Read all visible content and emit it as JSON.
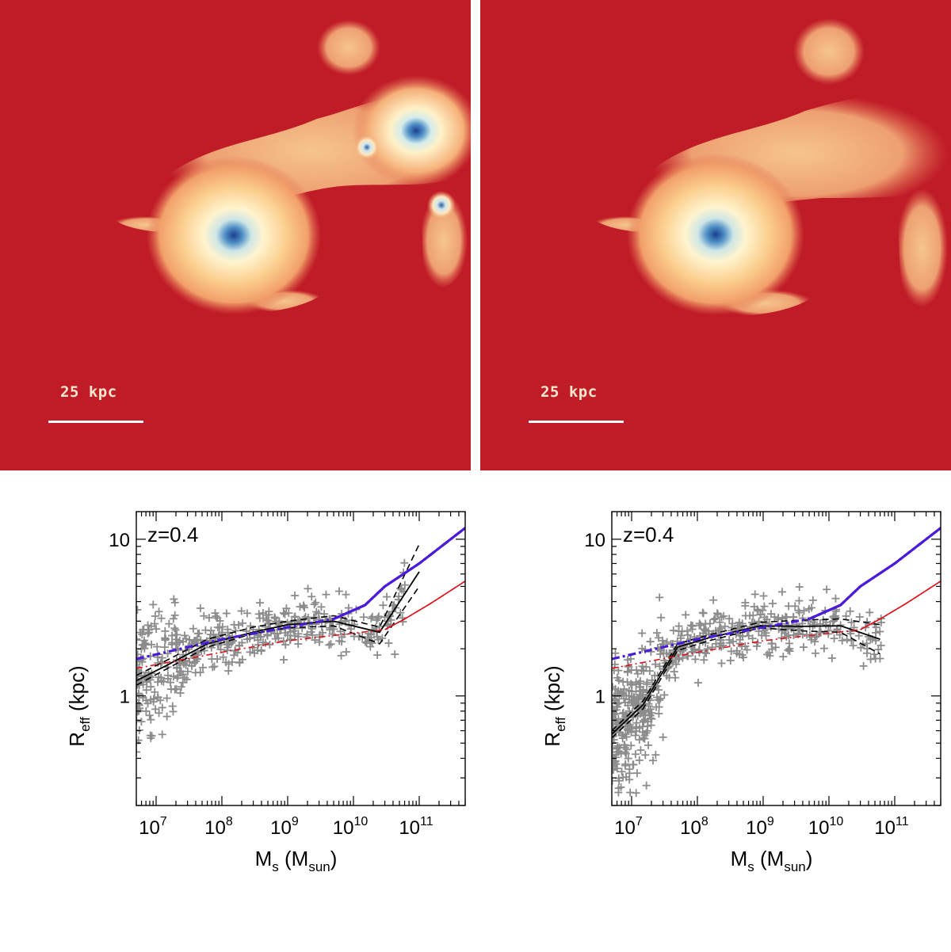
{
  "images": [
    {
      "id": "left",
      "scale_label": "25 kpc",
      "description_colors": {
        "background": "#c01c28",
        "core": "#1a3f8f"
      }
    },
    {
      "id": "right",
      "scale_label": "25 kpc",
      "description_colors": {
        "background": "#c01c28",
        "core": "#1a3f8f"
      }
    }
  ],
  "chart_data": [
    {
      "type": "scatter",
      "title": "z=0.4",
      "xlabel": "M_s (M_sun)",
      "ylabel": "R_eff (kpc)",
      "xscale": "log",
      "yscale": "log",
      "xlim": [
        5000000.0,
        500000000000.0
      ],
      "ylim": [
        0.2,
        15
      ],
      "xticks": [
        {
          "v": 10000000.0,
          "base": "10",
          "exp": "7"
        },
        {
          "v": 100000000.0,
          "base": "10",
          "exp": "8"
        },
        {
          "v": 1000000000.0,
          "base": "10",
          "exp": "9"
        },
        {
          "v": 10000000000.0,
          "base": "10",
          "exp": "10"
        },
        {
          "v": 100000000000.0,
          "base": "10",
          "exp": "11"
        }
      ],
      "yticks": [
        {
          "v": 1,
          "label": "1"
        },
        {
          "v": 10,
          "label": "10"
        }
      ],
      "series": [
        {
          "name": "median",
          "style": "black-solid",
          "x": [
            5000000.0,
            15000000.0,
            60000000.0,
            300000000.0,
            1000000000.0,
            5000000000.0,
            25000000000.0,
            100000000000.0
          ],
          "y": [
            1.25,
            1.58,
            2.15,
            2.55,
            2.85,
            3.0,
            2.55,
            6.2
          ]
        },
        {
          "name": "upper",
          "style": "black-dashed",
          "x": [
            5000000.0,
            15000000.0,
            60000000.0,
            300000000.0,
            1000000000.0,
            5000000000.0,
            25000000000.0,
            100000000000.0
          ],
          "y": [
            1.35,
            1.7,
            2.3,
            2.75,
            3.0,
            3.25,
            2.75,
            9.3
          ]
        },
        {
          "name": "lower",
          "style": "black-dashed",
          "x": [
            5000000.0,
            15000000.0,
            60000000.0,
            300000000.0,
            1000000000.0,
            5000000000.0,
            25000000000.0,
            100000000000.0
          ],
          "y": [
            1.17,
            1.5,
            2.05,
            2.5,
            2.72,
            2.8,
            2.15,
            5.0
          ]
        },
        {
          "name": "blue-fit",
          "style": "blue",
          "x": [
            5000000.0,
            100000000.0,
            5000000000.0,
            15000000000.0,
            30000000000.0,
            100000000000.0,
            500000000000.0
          ],
          "y": [
            1.72,
            2.3,
            3.1,
            3.8,
            5.0,
            7.0,
            11.8
          ]
        },
        {
          "name": "red-fit",
          "style": "red",
          "x": [
            5000000.0,
            100000000.0,
            1000000000.0,
            30000000000.0,
            60000000000.0,
            150000000000.0,
            500000000000.0
          ],
          "y": [
            1.5,
            1.9,
            2.25,
            2.65,
            3.1,
            3.9,
            5.4
          ]
        }
      ],
      "scatter_seed": 7,
      "scatter_count": 500,
      "scatter_shape": "left"
    },
    {
      "type": "scatter",
      "title": "z=0.4",
      "xlabel": "M_s (M_sun)",
      "ylabel": "R_eff (kpc)",
      "xscale": "log",
      "yscale": "log",
      "xlim": [
        5000000.0,
        500000000000.0
      ],
      "ylim": [
        0.2,
        15
      ],
      "xticks": [
        {
          "v": 10000000.0,
          "base": "10",
          "exp": "7"
        },
        {
          "v": 100000000.0,
          "base": "10",
          "exp": "8"
        },
        {
          "v": 1000000000.0,
          "base": "10",
          "exp": "9"
        },
        {
          "v": 10000000000.0,
          "base": "10",
          "exp": "10"
        },
        {
          "v": 100000000000.0,
          "base": "10",
          "exp": "11"
        }
      ],
      "yticks": [
        {
          "v": 1,
          "label": "1"
        },
        {
          "v": 10,
          "label": "10"
        }
      ],
      "series": [
        {
          "name": "median",
          "style": "black-solid",
          "x": [
            5000000.0,
            15000000.0,
            50000000.0,
            150000000.0,
            900000000.0,
            4000000000.0,
            15000000000.0,
            60000000000.0
          ],
          "y": [
            0.57,
            0.88,
            2.05,
            2.35,
            2.8,
            2.78,
            2.8,
            2.3
          ]
        },
        {
          "name": "upper",
          "style": "black-dashed",
          "x": [
            5000000.0,
            15000000.0,
            50000000.0,
            150000000.0,
            900000000.0,
            4000000000.0,
            15000000000.0,
            60000000000.0
          ],
          "y": [
            0.6,
            0.93,
            2.15,
            2.45,
            2.95,
            3.05,
            3.1,
            2.85
          ]
        },
        {
          "name": "lower",
          "style": "black-dashed",
          "x": [
            5000000.0,
            15000000.0,
            50000000.0,
            150000000.0,
            900000000.0,
            4000000000.0,
            15000000000.0,
            60000000000.0
          ],
          "y": [
            0.54,
            0.83,
            1.95,
            2.25,
            2.72,
            2.6,
            2.55,
            1.85
          ]
        },
        {
          "name": "blue-fit",
          "style": "blue",
          "x": [
            5000000.0,
            100000000.0,
            5000000000.0,
            15000000000.0,
            30000000000.0,
            100000000000.0,
            500000000000.0
          ],
          "y": [
            1.72,
            2.3,
            3.1,
            3.8,
            5.0,
            7.0,
            11.8
          ]
        },
        {
          "name": "red-fit",
          "style": "red",
          "x": [
            5000000.0,
            100000000.0,
            1000000000.0,
            30000000000.0,
            60000000000.0,
            150000000000.0,
            500000000000.0
          ],
          "y": [
            1.5,
            1.9,
            2.25,
            2.65,
            3.1,
            3.9,
            5.4
          ]
        }
      ],
      "scatter_seed": 13,
      "scatter_count": 620,
      "scatter_shape": "right"
    }
  ]
}
